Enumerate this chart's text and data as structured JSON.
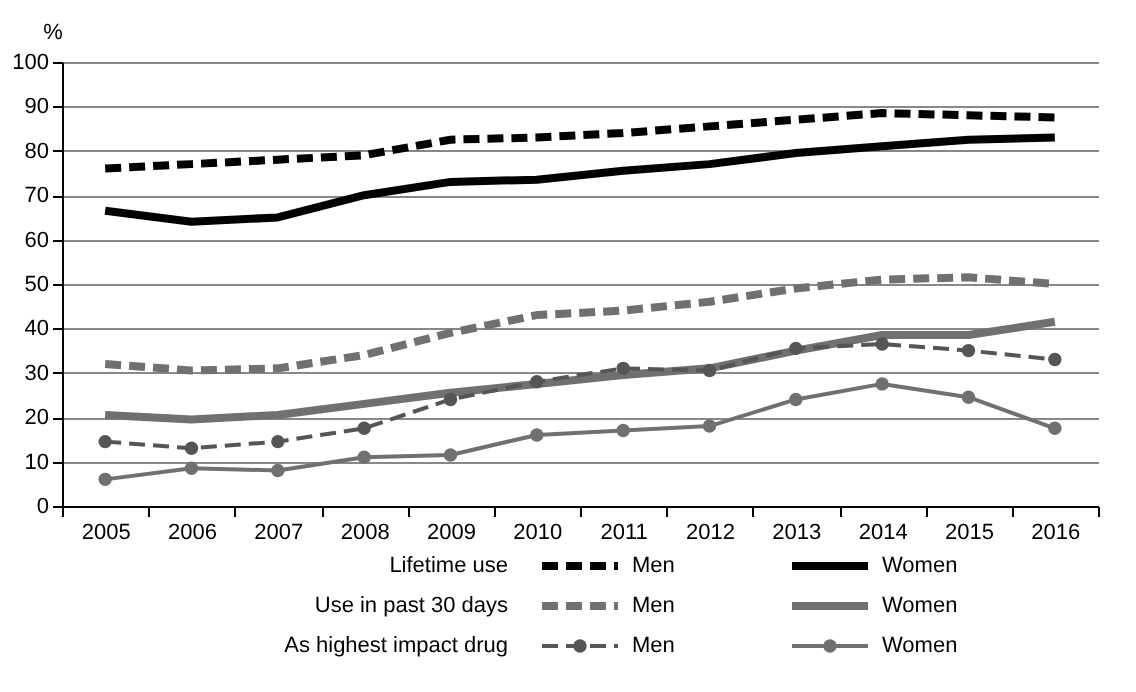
{
  "chart_data": {
    "type": "line",
    "ylabel": "%",
    "categories": [
      "2005",
      "2006",
      "2007",
      "2008",
      "2009",
      "2010",
      "2011",
      "2012",
      "2013",
      "2014",
      "2015",
      "2016"
    ],
    "ylim": [
      0,
      100
    ],
    "yticks": [
      0,
      10,
      20,
      30,
      40,
      50,
      60,
      70,
      80,
      90,
      100
    ],
    "grid": "y",
    "legend": "bottom",
    "annotations": [
      "Lifetime use",
      "Use in past 30 days",
      "As highest impact drug"
    ],
    "series": [
      {
        "name": "Men",
        "color": "#000000",
        "line_style": "dashed",
        "marker": "none",
        "values": [
          76,
          77,
          78,
          79,
          82.5,
          83,
          84,
          85.5,
          87,
          88.5,
          88,
          87.5
        ]
      },
      {
        "name": "Women",
        "color": "#000000",
        "line_style": "solid",
        "marker": "none",
        "values": [
          66.5,
          64,
          65,
          70,
          73,
          73.5,
          75.5,
          77,
          79.5,
          81,
          82.5,
          83
        ]
      },
      {
        "name": "Men",
        "color": "#707070",
        "line_style": "dashed",
        "marker": "none",
        "values": [
          32,
          30.5,
          31,
          34,
          39,
          43,
          44,
          46,
          49,
          51,
          51.5,
          50
        ]
      },
      {
        "name": "Women",
        "color": "#707070",
        "line_style": "solid",
        "marker": "none",
        "values": [
          20.5,
          19.5,
          20.5,
          23,
          25.5,
          27.5,
          29.5,
          31,
          35,
          38.5,
          38.5,
          41.5
        ]
      },
      {
        "name": "Men",
        "color": "#555555",
        "line_style": "dashed",
        "marker": "circle",
        "values": [
          14.5,
          13,
          14.5,
          17.5,
          24,
          28,
          31,
          30.5,
          35.5,
          36.5,
          35,
          33
        ]
      },
      {
        "name": "Women",
        "color": "#707070",
        "line_style": "solid",
        "marker": "circle",
        "values": [
          6,
          8.5,
          8,
          11,
          11.5,
          16,
          17,
          18,
          24,
          27.5,
          24.5,
          17.5
        ]
      }
    ]
  }
}
